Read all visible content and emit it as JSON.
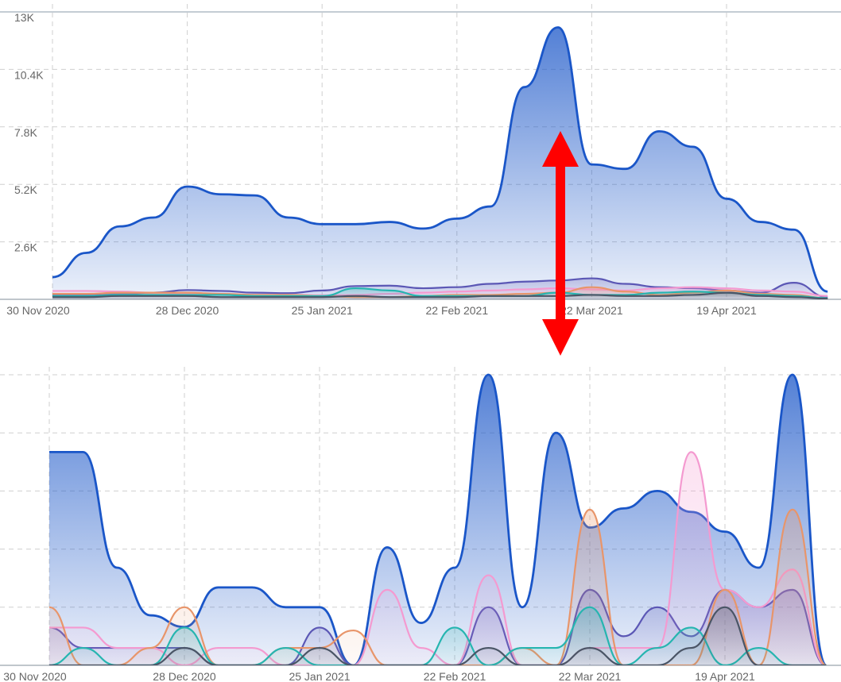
{
  "chart_data": [
    {
      "type": "area",
      "categories": [
        "30 Nov 2020",
        null,
        null,
        null,
        "28 Dec 2020",
        null,
        null,
        null,
        "25 Jan 2021",
        null,
        null,
        null,
        "22 Feb 2021",
        null,
        null,
        null,
        "22 Mar 2021",
        null,
        null,
        null,
        "19 Apr 2021",
        null,
        null,
        null
      ],
      "ylim": [
        0,
        13000
      ],
      "yticks": [
        {
          "value": 2600,
          "label": "2.6K"
        },
        {
          "value": 5200,
          "label": "5.2K"
        },
        {
          "value": 7800,
          "label": "7.8K"
        },
        {
          "value": 10400,
          "label": "10.4K"
        },
        {
          "value": 13000,
          "label": "13K"
        }
      ],
      "grid": true,
      "show_ytick_labels": true,
      "series": [
        {
          "color": "#1a56c8",
          "values": [
            1000,
            2100,
            3300,
            3700,
            5100,
            4750,
            4700,
            3700,
            3400,
            3400,
            3500,
            3200,
            3650,
            4200,
            9600,
            12300,
            6100,
            5900,
            7600,
            6900,
            4550,
            3500,
            3150,
            350
          ]
        },
        {
          "color": "#5b57b5",
          "values": [
            200,
            220,
            250,
            300,
            420,
            380,
            300,
            280,
            400,
            600,
            620,
            500,
            550,
            700,
            800,
            850,
            950,
            700,
            550,
            500,
            400,
            300,
            750,
            100
          ]
        },
        {
          "color": "#f49ad0",
          "values": [
            380,
            380,
            350,
            300,
            250,
            220,
            200,
            200,
            180,
            200,
            250,
            300,
            350,
            400,
            450,
            500,
            450,
            400,
            500,
            550,
            500,
            400,
            350,
            150
          ]
        },
        {
          "color": "#e8956a",
          "values": [
            250,
            250,
            300,
            300,
            300,
            250,
            200,
            200,
            150,
            100,
            100,
            150,
            200,
            200,
            250,
            300,
            550,
            350,
            200,
            300,
            400,
            250,
            200,
            50
          ]
        },
        {
          "color": "#26b5b0",
          "values": [
            150,
            150,
            200,
            200,
            200,
            200,
            150,
            150,
            150,
            500,
            400,
            150,
            150,
            150,
            150,
            300,
            200,
            200,
            300,
            350,
            300,
            200,
            150,
            50
          ]
        },
        {
          "color": "#4a5566",
          "values": [
            100,
            100,
            150,
            150,
            150,
            100,
            100,
            100,
            100,
            150,
            100,
            100,
            100,
            150,
            150,
            150,
            200,
            150,
            150,
            200,
            300,
            150,
            100,
            30
          ]
        }
      ]
    },
    {
      "type": "area",
      "categories": [
        "30 Nov 2020",
        null,
        null,
        null,
        "28 Dec 2020",
        null,
        null,
        null,
        "25 Jan 2021",
        null,
        null,
        null,
        "22 Feb 2021",
        null,
        null,
        null,
        "22 Mar 2021",
        null,
        null,
        null,
        "19 Apr 2021",
        null,
        null,
        null
      ],
      "ylim": [
        0,
        5
      ],
      "yticks": [
        1,
        2,
        3,
        4,
        5
      ],
      "grid": true,
      "show_ytick_labels": false,
      "series": [
        {
          "color": "#1a56c8",
          "values": [
            3.67,
            3.67,
            1.68,
            0.86,
            0.66,
            1.34,
            1.34,
            1.0,
            1.0,
            0,
            2.03,
            0.73,
            1.68,
            5,
            1.0,
            4.0,
            2.37,
            2.7,
            3.0,
            2.64,
            2.3,
            1.68,
            5,
            0
          ]
        },
        {
          "color": "#5b57b5",
          "values": [
            0.65,
            0.3,
            0.3,
            0.3,
            0.3,
            0,
            0,
            0,
            0.65,
            0,
            0,
            0,
            0,
            1.0,
            0,
            0,
            1.3,
            0.5,
            1.0,
            0.5,
            1.3,
            1.0,
            1.3,
            0
          ]
        },
        {
          "color": "#f49ad0",
          "values": [
            0.65,
            0.65,
            0.3,
            0.3,
            0,
            0.3,
            0.3,
            0,
            0,
            0,
            1.3,
            0.3,
            0,
            1.55,
            0,
            0,
            0.3,
            0.3,
            0.3,
            3.67,
            1.3,
            1.0,
            1.65,
            0
          ]
        },
        {
          "color": "#e8956a",
          "values": [
            1.0,
            0,
            0,
            0.3,
            1.0,
            0,
            0,
            0.3,
            0.3,
            0.6,
            0,
            0,
            0,
            0,
            0.3,
            0,
            2.68,
            0,
            0,
            0,
            1.3,
            0,
            2.68,
            0
          ]
        },
        {
          "color": "#26b5b0",
          "values": [
            0,
            0.3,
            0,
            0,
            0.65,
            0,
            0,
            0.3,
            0,
            0,
            0,
            0,
            0.65,
            0,
            0.3,
            0.3,
            1.0,
            0,
            0.3,
            0.65,
            0,
            0.3,
            0,
            0
          ]
        },
        {
          "color": "#4a5566",
          "values": [
            0,
            0,
            0,
            0,
            0.3,
            0,
            0,
            0,
            0.3,
            0,
            0,
            0,
            0,
            0.3,
            0,
            0,
            0.3,
            0,
            0,
            0.3,
            1.0,
            0,
            0,
            0
          ]
        }
      ]
    }
  ]
}
